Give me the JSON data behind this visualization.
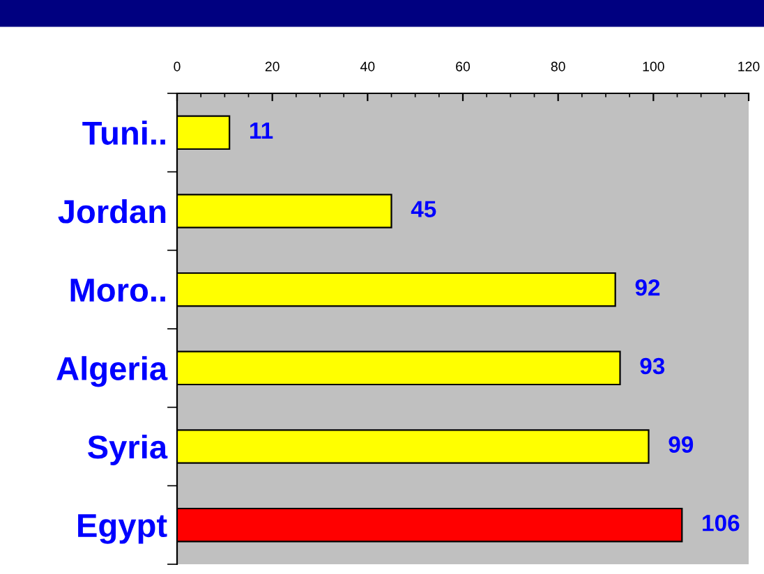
{
  "chart_data": {
    "type": "bar",
    "orientation": "horizontal",
    "categories": [
      "Tuni..",
      "Jordan",
      "Moro..",
      "Algeria",
      "Syria",
      "Egypt"
    ],
    "values": [
      11,
      45,
      92,
      93,
      99,
      106
    ],
    "colors": [
      "#ffff00",
      "#ffff00",
      "#ffff00",
      "#ffff00",
      "#ffff00",
      "#ff0000"
    ],
    "xlim": [
      0,
      120
    ],
    "xticks": [
      0,
      20,
      40,
      60,
      80,
      100,
      120
    ],
    "data_labels": true,
    "grid": false,
    "legend": false
  }
}
